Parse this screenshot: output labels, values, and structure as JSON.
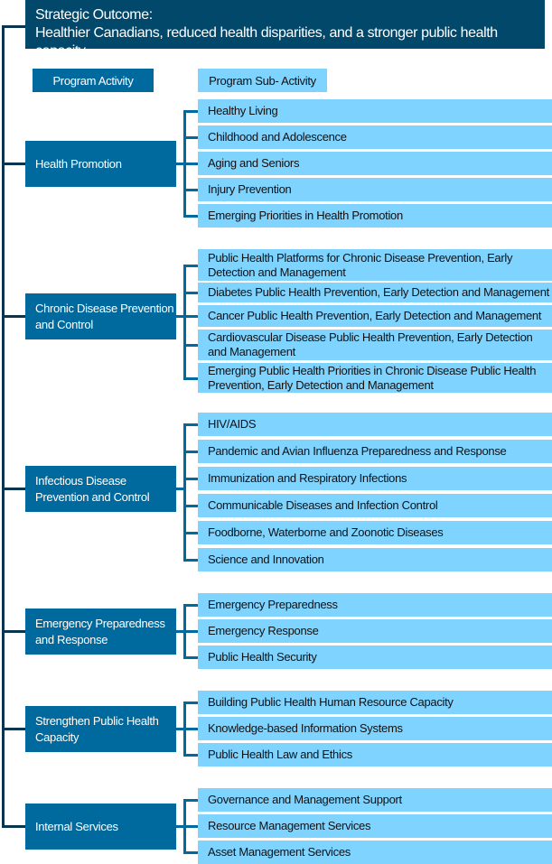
{
  "colors": {
    "strategic_outcome": "#02486b",
    "program_activity": "#006a9e",
    "program_sub_activity": "#7fd3ff",
    "trunk_line": "#0a3550"
  },
  "strategic_outcome": {
    "label": "Strategic Outcome:",
    "text": "Healthier Canadians, reduced health disparities, and a stronger public health capacity"
  },
  "legend": {
    "activity": "Program Activity",
    "sub_activity": "Program Sub- Activity"
  },
  "activities": [
    {
      "name": "Health Promotion",
      "subs": [
        "Healthy Living",
        "Childhood and Adolescence",
        "Aging and Seniors",
        "Injury Prevention",
        "Emerging Priorities in Health Promotion"
      ]
    },
    {
      "name": "Chronic Disease Prevention and Control",
      "subs": [
        "Public Health Platforms for Chronic Disease Prevention, Early Detection and Management",
        "Diabetes Public Health Prevention, Early Detection and Management",
        "Cancer Public Health Prevention, Early Detection and Management",
        "Cardiovascular Disease Public Health Prevention, Early Detection and Management",
        "Emerging Public Health Priorities in Chronic Disease Public Health Prevention, Early Detection and Management"
      ]
    },
    {
      "name": "Infectious Disease Prevention and Control",
      "subs": [
        "HIV/AIDS",
        "Pandemic and Avian Influenza Preparedness and Response",
        "Immunization and Respiratory Infections",
        "Communicable Diseases and Infection Control",
        "Foodborne, Waterborne and Zoonotic Diseases",
        "Science and Innovation"
      ]
    },
    {
      "name": "Emergency Preparedness and Response",
      "subs": [
        "Emergency Preparedness",
        "Emergency Response",
        "Public Health Security"
      ]
    },
    {
      "name": "Strengthen Public Health Capacity",
      "subs": [
        "Building Public Health Human Resource Capacity",
        "Knowledge-based Information Systems",
        "Public Health Law and Ethics"
      ]
    },
    {
      "name": "Internal Services",
      "subs": [
        "Governance and Management Support",
        "Resource Management Services",
        "Asset Management Services"
      ]
    }
  ]
}
